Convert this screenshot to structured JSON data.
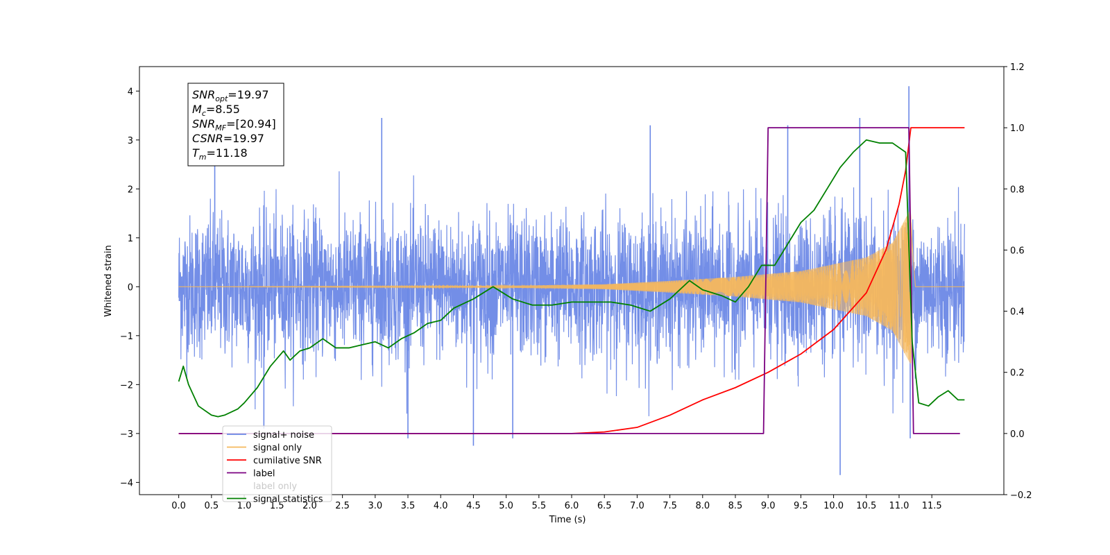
{
  "chart_data": {
    "type": "line",
    "title": "",
    "xlabel": "Time (s)",
    "ylabel": "Whitened strain",
    "y2label": "",
    "xlim": [
      -0.6,
      12.6
    ],
    "ylim": [
      -4.25,
      4.5
    ],
    "y2lim": [
      -0.2,
      1.2
    ],
    "x_ticks": [
      0.0,
      0.5,
      1.0,
      1.5,
      2.0,
      2.5,
      3.0,
      3.5,
      4.0,
      4.5,
      5.0,
      5.5,
      6.0,
      6.5,
      7.0,
      7.5,
      8.0,
      8.5,
      9.0,
      9.5,
      10.0,
      10.5,
      11.0,
      11.5
    ],
    "x_tick_labels": [
      "0.0",
      "0.5",
      "1.0",
      "1.5",
      "2.0",
      "2.5",
      "3.0",
      "3.5",
      "4.0",
      "4.5",
      "5.0",
      "5.5",
      "6.0",
      "6.5",
      "7.0",
      "7.5",
      "8.0",
      "8.5",
      "9.0",
      "9.5",
      "10.0",
      "10.5",
      "11.0",
      "11.5"
    ],
    "y_ticks": [
      -4,
      -3,
      -2,
      -1,
      0,
      1,
      2,
      3,
      4
    ],
    "y_tick_labels": [
      "−4",
      "−3",
      "−2",
      "−1",
      "0",
      "1",
      "2",
      "3",
      "4"
    ],
    "y2_ticks": [
      -0.2,
      0.0,
      0.2,
      0.4,
      0.6,
      0.8,
      1.0,
      1.2
    ],
    "y2_tick_labels": [
      "−0.2",
      "0.0",
      "0.2",
      "0.4",
      "0.6",
      "0.8",
      "1.0",
      "1.2"
    ],
    "grid": false,
    "legend_position": "lower-left",
    "annotation": {
      "lines": [
        {
          "sym": "SNR",
          "sub": "opt",
          "text": "=19.97"
        },
        {
          "sym": "M",
          "sub": "c",
          "text": "=8.55"
        },
        {
          "sym": "SNR",
          "sub": "MF",
          "text": "=[20.94]"
        },
        {
          "sym": "CSNR",
          "sub": "",
          "text": "=19.97"
        },
        {
          "sym": "T",
          "sub": "m",
          "text": "=11.18"
        }
      ]
    },
    "series": [
      {
        "name": "signal+ noise",
        "color": "#6b88e6",
        "axis": "left",
        "kind": "noise",
        "x_range": [
          0.0,
          12.0
        ],
        "amplitude_envelope": [
          1.1,
          1.1
        ],
        "spikes": [
          [
            0.55,
            2.6
          ],
          [
            1.3,
            -2.9
          ],
          [
            3.1,
            3.45
          ],
          [
            3.5,
            -3.1
          ],
          [
            4.5,
            -3.25
          ],
          [
            5.1,
            -3.1
          ],
          [
            7.2,
            3.3
          ],
          [
            9.3,
            3.3
          ],
          [
            10.1,
            -3.85
          ],
          [
            10.4,
            3.45
          ],
          [
            11.15,
            4.1
          ],
          [
            11.17,
            -3.1
          ]
        ]
      },
      {
        "name": "signal only",
        "color": "#f5b85c",
        "axis": "left",
        "kind": "chirp",
        "x_range": [
          0.0,
          12.0
        ],
        "merger_time": 11.18,
        "envelope_points": [
          [
            0.0,
            0.0
          ],
          [
            5.0,
            0.02
          ],
          [
            6.5,
            0.05
          ],
          [
            7.5,
            0.12
          ],
          [
            8.5,
            0.2
          ],
          [
            9.5,
            0.32
          ],
          [
            10.5,
            0.6
          ],
          [
            10.9,
            0.9
          ],
          [
            11.1,
            1.4
          ],
          [
            11.18,
            1.6
          ],
          [
            11.25,
            0.0
          ]
        ]
      },
      {
        "name": "cumilative SNR",
        "color": "#ff0000",
        "axis": "right",
        "points": [
          [
            0.0,
            0.0
          ],
          [
            6.0,
            0.0
          ],
          [
            6.5,
            0.005
          ],
          [
            7.0,
            0.02
          ],
          [
            7.5,
            0.06
          ],
          [
            8.0,
            0.11
          ],
          [
            8.5,
            0.15
          ],
          [
            9.0,
            0.2
          ],
          [
            9.5,
            0.26
          ],
          [
            10.0,
            0.34
          ],
          [
            10.5,
            0.46
          ],
          [
            10.8,
            0.6
          ],
          [
            11.0,
            0.75
          ],
          [
            11.1,
            0.86
          ],
          [
            11.18,
            1.0
          ],
          [
            12.0,
            1.0
          ]
        ]
      },
      {
        "name": "label",
        "color": "#7b0080",
        "axis": "right",
        "points": [
          [
            0.0,
            0.0
          ],
          [
            8.93,
            0.0
          ],
          [
            9.0,
            1.0
          ],
          [
            11.15,
            1.0
          ],
          [
            11.22,
            0.0
          ],
          [
            11.93,
            0.0
          ]
        ]
      },
      {
        "name": "signal statistics",
        "color": "#008000",
        "axis": "right",
        "points": [
          [
            0.0,
            0.17
          ],
          [
            0.07,
            0.22
          ],
          [
            0.15,
            0.16
          ],
          [
            0.3,
            0.09
          ],
          [
            0.5,
            0.06
          ],
          [
            0.6,
            0.055
          ],
          [
            0.7,
            0.06
          ],
          [
            0.9,
            0.08
          ],
          [
            1.0,
            0.1
          ],
          [
            1.2,
            0.15
          ],
          [
            1.4,
            0.22
          ],
          [
            1.6,
            0.27
          ],
          [
            1.7,
            0.24
          ],
          [
            1.85,
            0.27
          ],
          [
            2.0,
            0.28
          ],
          [
            2.2,
            0.31
          ],
          [
            2.4,
            0.28
          ],
          [
            2.6,
            0.28
          ],
          [
            2.8,
            0.29
          ],
          [
            3.0,
            0.3
          ],
          [
            3.2,
            0.28
          ],
          [
            3.4,
            0.31
          ],
          [
            3.6,
            0.33
          ],
          [
            3.8,
            0.36
          ],
          [
            4.0,
            0.37
          ],
          [
            4.2,
            0.41
          ],
          [
            4.5,
            0.44
          ],
          [
            4.8,
            0.48
          ],
          [
            5.1,
            0.44
          ],
          [
            5.4,
            0.42
          ],
          [
            5.7,
            0.42
          ],
          [
            6.0,
            0.43
          ],
          [
            6.3,
            0.43
          ],
          [
            6.6,
            0.43
          ],
          [
            6.9,
            0.42
          ],
          [
            7.2,
            0.4
          ],
          [
            7.5,
            0.44
          ],
          [
            7.8,
            0.5
          ],
          [
            8.0,
            0.47
          ],
          [
            8.3,
            0.45
          ],
          [
            8.5,
            0.43
          ],
          [
            8.7,
            0.48
          ],
          [
            8.9,
            0.55
          ],
          [
            9.1,
            0.55
          ],
          [
            9.3,
            0.62
          ],
          [
            9.5,
            0.69
          ],
          [
            9.7,
            0.73
          ],
          [
            9.9,
            0.8
          ],
          [
            10.1,
            0.87
          ],
          [
            10.3,
            0.92
          ],
          [
            10.5,
            0.96
          ],
          [
            10.7,
            0.95
          ],
          [
            10.9,
            0.95
          ],
          [
            11.1,
            0.92
          ],
          [
            11.2,
            0.3
          ],
          [
            11.3,
            0.1
          ],
          [
            11.45,
            0.09
          ],
          [
            11.6,
            0.12
          ],
          [
            11.75,
            0.14
          ],
          [
            11.9,
            0.11
          ],
          [
            12.0,
            0.11
          ]
        ]
      }
    ],
    "legend": [
      {
        "label": "signal+ noise",
        "color": "#6b88e6"
      },
      {
        "label": "signal only",
        "color": "#f5b85c"
      },
      {
        "label": "cumilative SNR",
        "color": "#ff0000"
      },
      {
        "label": "label",
        "color": "#7b0080"
      },
      {
        "label": "label only",
        "color": "#c8c8c8"
      },
      {
        "label": "signal statistics",
        "color": "#008000"
      }
    ]
  }
}
